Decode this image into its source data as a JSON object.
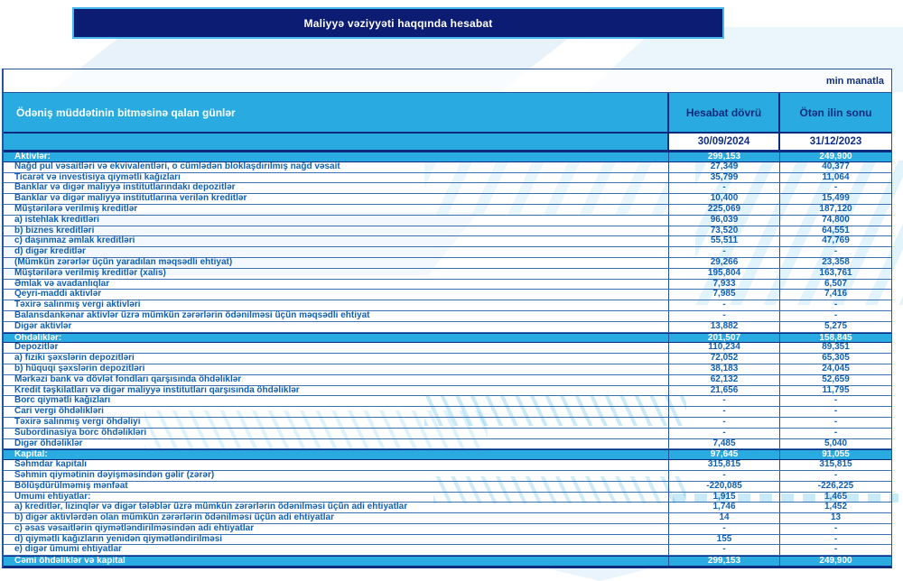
{
  "banner": {
    "title": "Maliyyə vəziyyəti haqqında hesabat"
  },
  "unit_note": "min manatla",
  "colors": {
    "accent_cyan": "#29abe2",
    "banner_navy": "#0b1c72",
    "banner_border": "#47b6ea",
    "header_text_navy": "#0d2b7d",
    "row_text_blue": "#1260b2"
  },
  "table": {
    "columns": {
      "label": "Ödəniş müddətinin bitməsinə qalan günlər",
      "current": "Hesabat dövrü",
      "previous": "Ötən ilin sonu"
    },
    "dates": {
      "current": "30/09/2024",
      "previous": "31/12/2023"
    },
    "rows": [
      {
        "type": "section",
        "label": "Aktivlər:",
        "v1": "299,153",
        "v2": "249,900"
      },
      {
        "type": "item",
        "label": "Nağd pul vəsaitləri və  ekvivalentləri, o cümlədən bloklaşdırılmış nağd vəsait",
        "v1": "27,349",
        "v2": "40,377"
      },
      {
        "type": "item",
        "label": "Ticarət və investisiya qiymətli kağızları",
        "v1": "35,799",
        "v2": "11,064"
      },
      {
        "type": "item",
        "label": "Banklar və digər maliyyə institutlarındakı depozitlər",
        "v1": "-",
        "v2": "-"
      },
      {
        "type": "item",
        "label": "Banklar və digər maliyyə institutlarına verilən kreditlər",
        "v1": "10,400",
        "v2": "15,499"
      },
      {
        "type": "item",
        "label": "Müştərilərə verilmiş kreditlər",
        "v1": "225,069",
        "v2": "187,120"
      },
      {
        "type": "item",
        "label": "a) istehlak kreditləri",
        "v1": "96,039",
        "v2": "74,800"
      },
      {
        "type": "item",
        "label": "b) biznes kreditləri",
        "v1": "73,520",
        "v2": "64,551"
      },
      {
        "type": "item",
        "label": "c) daşınmaz əmlak kreditləri",
        "v1": "55,511",
        "v2": "47,769"
      },
      {
        "type": "item",
        "label": "d) digər kreditlər",
        "v1": "-",
        "v2": "-"
      },
      {
        "type": "item",
        "label": "(Mümkün zərərlər üçün yaradılan məqsədli ehtiyat)",
        "v1": "29,266",
        "v2": "23,358"
      },
      {
        "type": "item",
        "label": "Müştərilərə verilmiş kreditlər (xalis)",
        "v1": "195,804",
        "v2": "163,761"
      },
      {
        "type": "item",
        "label": "Əmlak və avadanlıqlar",
        "v1": "7,933",
        "v2": "6,507"
      },
      {
        "type": "item",
        "label": "Qeyri-maddi aktivlər",
        "v1": "7,985",
        "v2": "7,416"
      },
      {
        "type": "item",
        "label": "Təxirə salınmış vergi aktivləri",
        "v1": "-",
        "v2": "-"
      },
      {
        "type": "item",
        "label": "Balansdankənar aktivlər üzrə mümkün zərərlərin ödənilməsi üçün məqsədli ehtiyat",
        "v1": "-",
        "v2": "-"
      },
      {
        "type": "item",
        "label": "Digər aktivlər",
        "v1": "13,882",
        "v2": "5,275"
      },
      {
        "type": "section",
        "label": "Öhdəliklər:",
        "v1": "201,507",
        "v2": "158,845"
      },
      {
        "type": "item",
        "label": "Depozitlər",
        "v1": "110,234",
        "v2": "89,351"
      },
      {
        "type": "item",
        "label": "a) fiziki şəxslərin depozitləri",
        "v1": "72,052",
        "v2": "65,305"
      },
      {
        "type": "item",
        "label": "b) hüquqi şəxslərin depozitləri",
        "v1": "38,183",
        "v2": "24,045"
      },
      {
        "type": "item",
        "label": "Mərkəzi bank və dövlət fondları qarşısında öhdəliklər",
        "v1": "62,132",
        "v2": "52,659"
      },
      {
        "type": "item",
        "label": "Kredit təşkilatları və digər maliyyə institutları qarşısında öhdəliklər",
        "v1": "21,656",
        "v2": "11,795"
      },
      {
        "type": "item",
        "label": "Borc qiymətli kağızları",
        "v1": "-",
        "v2": "-"
      },
      {
        "type": "item",
        "label": "Cari vergi öhdəlikləri",
        "v1": "-",
        "v2": "-"
      },
      {
        "type": "item",
        "label": "Təxirə salınmış vergi öhdəliyi",
        "v1": "-",
        "v2": "-"
      },
      {
        "type": "item",
        "label": "Subordinasiya borc öhdəlikləri",
        "v1": "-",
        "v2": "-"
      },
      {
        "type": "item",
        "label": "Digər öhdəliklər",
        "v1": "7,485",
        "v2": "5,040"
      },
      {
        "type": "section",
        "label": "Kapital:",
        "v1": "97,645",
        "v2": "91,055"
      },
      {
        "type": "item",
        "label": "Səhmdar kapitalı",
        "v1": "315,815",
        "v2": "315,815"
      },
      {
        "type": "item",
        "label": "Səhmin qiymətinin dəyişməsindən gəlir (zərər)",
        "v1": "-",
        "v2": "-"
      },
      {
        "type": "item",
        "label": "Bölüşdürülməmiş mənfəat",
        "v1": "-220,085",
        "v2": "-226,225"
      },
      {
        "type": "item",
        "label": "Ümumi ehtiyatlar:",
        "v1": "1,915",
        "v2": "1,465"
      },
      {
        "type": "item",
        "label": "a) kreditlər, lizinqlər və digər tələblər üzrə mümkün zərərlərin ödənilməsi üçün adi ehtiyatlar",
        "v1": "1,746",
        "v2": "1,452"
      },
      {
        "type": "item",
        "label": "b) digər aktivlərdən olan mümkün zərərlərin ödənilməsi üçün adi ehtiyatlar",
        "v1": "14",
        "v2": "13"
      },
      {
        "type": "item",
        "label": "c) əsas vəsaitlərin qiymətləndirilməsindən adi ehtiyatlar",
        "v1": "-",
        "v2": "-"
      },
      {
        "type": "item",
        "label": "d) qiymətli kağızların yenidən qiymətləndirilməsi",
        "v1": "155",
        "v2": "-"
      },
      {
        "type": "item",
        "label": "e) digər ümumi ehtiyatlar",
        "v1": "-",
        "v2": "-"
      },
      {
        "type": "section",
        "label": "Cəmi öhdəliklər və kapital",
        "v1": "299,153",
        "v2": "249,900"
      }
    ]
  }
}
